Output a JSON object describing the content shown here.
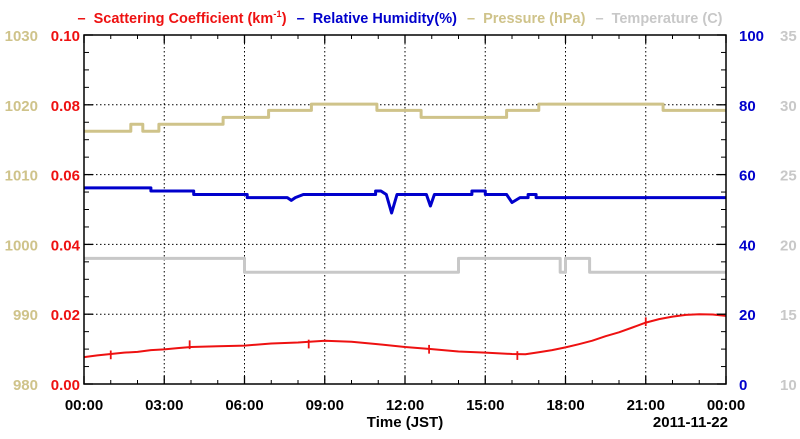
{
  "legend": {
    "prefix": "–",
    "items": [
      {
        "text": "Scattering Coefficient (km",
        "sup": "-1",
        "suffix": ")",
        "color": "#ee1111"
      },
      {
        "text": "Relative Humidity(%)",
        "color": "#0000cc"
      },
      {
        "text": "Pressure (hPa)",
        "color": "#cfc38a"
      },
      {
        "text": "Temperature (C)",
        "color": "#c8c8c8"
      }
    ]
  },
  "x_axis": {
    "label": "Time (JST)",
    "date": "2011-11-22",
    "ticks": [
      "00:00",
      "03:00",
      "06:00",
      "09:00",
      "12:00",
      "15:00",
      "18:00",
      "21:00",
      "00:00"
    ]
  },
  "chart_data": {
    "type": "line",
    "x_unit": "hours since 00:00 JST on 2011-11-22",
    "x_range": [
      0,
      24
    ],
    "grid": true,
    "axes": {
      "pressure": {
        "side": "left-outer",
        "range": [
          980,
          1030
        ],
        "ticks": [
          "980",
          "990",
          "1000",
          "1010",
          "1020",
          "1030"
        ],
        "color": "#cfc38a"
      },
      "scattering": {
        "side": "left-inner",
        "range": [
          0,
          0.1
        ],
        "ticks": [
          "0.00",
          "0.02",
          "0.04",
          "0.06",
          "0.08",
          "0.10"
        ],
        "color": "#ee1111"
      },
      "humidity": {
        "side": "right-inner",
        "range": [
          0,
          100
        ],
        "ticks": [
          "0",
          "20",
          "40",
          "60",
          "80",
          "100"
        ],
        "color": "#0000cc"
      },
      "temperature": {
        "side": "right-outer",
        "range": [
          10,
          35
        ],
        "ticks": [
          "10",
          "15",
          "20",
          "25",
          "30",
          "35"
        ],
        "color": "#c8c8c8"
      }
    },
    "series": [
      {
        "name": "Pressure (hPa)",
        "axis": "pressure",
        "color": "#cfc38a",
        "step": true,
        "points": [
          [
            0,
            1016.2
          ],
          [
            1.75,
            1016.2
          ],
          [
            1.75,
            1017.2
          ],
          [
            2.2,
            1017.2
          ],
          [
            2.2,
            1016.2
          ],
          [
            2.8,
            1016.2
          ],
          [
            2.8,
            1017.2
          ],
          [
            5.2,
            1017.2
          ],
          [
            5.2,
            1018.2
          ],
          [
            6.9,
            1018.2
          ],
          [
            6.9,
            1019.2
          ],
          [
            8.5,
            1019.2
          ],
          [
            8.5,
            1020.1
          ],
          [
            10.95,
            1020.1
          ],
          [
            10.95,
            1019.2
          ],
          [
            12.6,
            1019.2
          ],
          [
            12.6,
            1018.2
          ],
          [
            15.8,
            1018.2
          ],
          [
            15.8,
            1019.2
          ],
          [
            17.0,
            1019.2
          ],
          [
            17.0,
            1020.1
          ],
          [
            21.65,
            1020.1
          ],
          [
            21.65,
            1019.2
          ],
          [
            24,
            1019.2
          ]
        ]
      },
      {
        "name": "Relative Humidity(%)",
        "axis": "humidity",
        "color": "#0000cc",
        "step": true,
        "points": [
          [
            0,
            56.2
          ],
          [
            2.5,
            56.2
          ],
          [
            2.5,
            55.3
          ],
          [
            4.1,
            55.3
          ],
          [
            4.1,
            54.3
          ],
          [
            6.1,
            54.3
          ],
          [
            6.1,
            53.4
          ],
          [
            7.6,
            53.4
          ],
          [
            7.75,
            52.6
          ],
          [
            7.9,
            53.4
          ],
          [
            8.2,
            54.3
          ],
          [
            10.9,
            54.3
          ],
          [
            10.9,
            55.3
          ],
          [
            11.1,
            55.3
          ],
          [
            11.3,
            54.3
          ],
          [
            11.5,
            49.0
          ],
          [
            11.7,
            54.3
          ],
          [
            12.8,
            54.3
          ],
          [
            12.95,
            51.0
          ],
          [
            13.1,
            54.3
          ],
          [
            14.5,
            54.3
          ],
          [
            14.5,
            55.3
          ],
          [
            15.0,
            55.3
          ],
          [
            15.0,
            54.3
          ],
          [
            15.8,
            54.3
          ],
          [
            16.0,
            52.0
          ],
          [
            16.3,
            53.4
          ],
          [
            16.6,
            53.4
          ],
          [
            16.6,
            54.3
          ],
          [
            16.9,
            54.3
          ],
          [
            16.9,
            53.4
          ],
          [
            24,
            53.4
          ]
        ]
      },
      {
        "name": "Temperature (C)",
        "axis": "temperature",
        "color": "#c8c8c8",
        "step": true,
        "points": [
          [
            0,
            19.0
          ],
          [
            6.0,
            19.0
          ],
          [
            6.0,
            18.0
          ],
          [
            14.0,
            18.0
          ],
          [
            14.0,
            19.0
          ],
          [
            17.8,
            19.0
          ],
          [
            17.8,
            18.0
          ],
          [
            18.0,
            18.0
          ],
          [
            18.0,
            19.0
          ],
          [
            18.9,
            19.0
          ],
          [
            18.9,
            18.0
          ],
          [
            24,
            18.0
          ]
        ]
      },
      {
        "name": "Scattering Coefficient",
        "axis": "scattering",
        "color": "#ee1111",
        "step": false,
        "points": [
          [
            0,
            0.0077
          ],
          [
            0.5,
            0.0082
          ],
          [
            1.0,
            0.0086
          ],
          [
            1.5,
            0.009
          ],
          [
            2.0,
            0.0092
          ],
          [
            2.5,
            0.0097
          ],
          [
            3.0,
            0.0099
          ],
          [
            3.5,
            0.0103
          ],
          [
            4.0,
            0.0106
          ],
          [
            5.0,
            0.0108
          ],
          [
            6.0,
            0.011
          ],
          [
            7.0,
            0.0116
          ],
          [
            8.0,
            0.0119
          ],
          [
            9.0,
            0.0124
          ],
          [
            10.0,
            0.0121
          ],
          [
            11.0,
            0.0114
          ],
          [
            12.0,
            0.0106
          ],
          [
            13.0,
            0.01
          ],
          [
            14.0,
            0.0093
          ],
          [
            15.0,
            0.009
          ],
          [
            16.0,
            0.0086
          ],
          [
            16.5,
            0.0085
          ],
          [
            17.0,
            0.0091
          ],
          [
            17.5,
            0.0097
          ],
          [
            18.0,
            0.0105
          ],
          [
            18.5,
            0.0114
          ],
          [
            19.0,
            0.0124
          ],
          [
            19.5,
            0.0137
          ],
          [
            20.0,
            0.0148
          ],
          [
            20.5,
            0.0162
          ],
          [
            21.0,
            0.0176
          ],
          [
            21.5,
            0.0186
          ],
          [
            22.0,
            0.0193
          ],
          [
            22.5,
            0.0198
          ],
          [
            23.0,
            0.02
          ],
          [
            23.5,
            0.0199
          ],
          [
            24.0,
            0.0195
          ]
        ]
      }
    ],
    "spikes": [
      {
        "series": "Scattering Coefficient",
        "x": 1.0,
        "y": 0.0096
      },
      {
        "series": "Scattering Coefficient",
        "x": 3.95,
        "y": 0.0125
      },
      {
        "series": "Scattering Coefficient",
        "x": 8.4,
        "y": 0.0127
      },
      {
        "series": "Scattering Coefficient",
        "x": 12.9,
        "y": 0.0112
      },
      {
        "series": "Scattering Coefficient",
        "x": 16.2,
        "y": 0.0094
      },
      {
        "series": "Scattering Coefficient",
        "x": 21.0,
        "y": 0.0191
      }
    ]
  }
}
